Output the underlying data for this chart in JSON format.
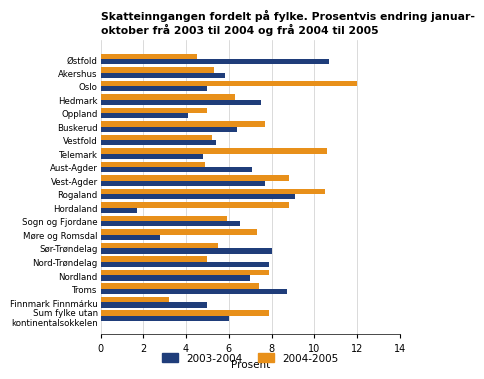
{
  "title": "Skatteinngangen fordelt på fylke. Prosentvis endring januar-\noktober frå 2003 til 2004 og frå 2004 til 2005",
  "categories": [
    "Østfold",
    "Akershus",
    "Oslo",
    "Hedmark",
    "Oppland",
    "Buskerud",
    "Vestfold",
    "Telemark",
    "Aust-Agder",
    "Vest-Agder",
    "Rogaland",
    "Hordaland",
    "Sogn og Fjordane",
    "Møre og Romsdal",
    "Sør-Trøndelag",
    "Nord-Trøndelag",
    "Nordland",
    "Troms",
    "Finnmark Finnmárku",
    "Sum fylke utan\nkontinentalsokkelen"
  ],
  "values_2003_2004": [
    10.7,
    5.8,
    5.0,
    7.5,
    4.1,
    6.4,
    5.4,
    4.8,
    7.1,
    7.7,
    9.1,
    1.7,
    6.5,
    2.8,
    8.0,
    7.9,
    7.0,
    8.7,
    5.0,
    6.0
  ],
  "values_2004_2005": [
    4.5,
    5.3,
    12.0,
    6.3,
    5.0,
    7.7,
    5.2,
    10.6,
    4.9,
    8.8,
    10.5,
    8.8,
    5.9,
    7.3,
    5.5,
    5.0,
    7.9,
    7.4,
    3.2,
    7.9
  ],
  "color_2003_2004": "#1f3d7a",
  "color_2004_2005": "#e8901a",
  "xlabel": "Prosent",
  "xlim": [
    0,
    14
  ],
  "xticks": [
    0,
    2,
    4,
    6,
    8,
    10,
    12,
    14
  ],
  "legend_labels": [
    "2003-2004",
    "2004-2005"
  ],
  "bar_height": 0.4,
  "background_color": "#ffffff",
  "grid_color": "#cccccc"
}
